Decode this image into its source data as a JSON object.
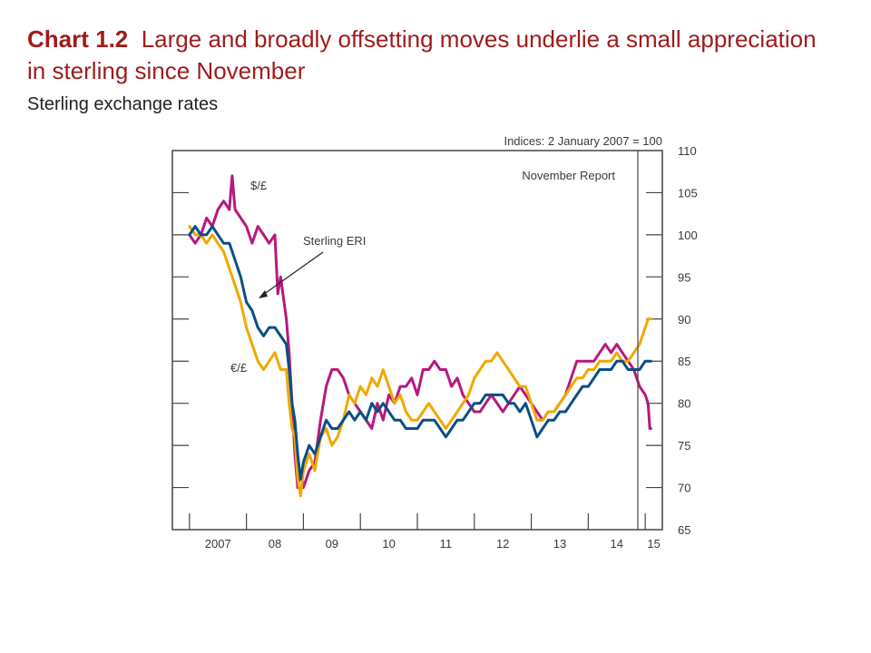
{
  "slide": {
    "chart_number": "Chart 1.2",
    "headline": "Large and broadly offsetting moves underlie a small appreciation in sterling since November",
    "subtitle": "Sterling exchange rates"
  },
  "chart_data": {
    "type": "line",
    "title": "Large and broadly offsetting moves underlie a small appreciation in sterling since November",
    "subtitle": "Sterling exchange rates",
    "units_label": "Indices: 2 January 2007 = 100",
    "xlabel": "",
    "ylabel": "",
    "x_ticks": [
      "2007",
      "08",
      "09",
      "10",
      "11",
      "12",
      "13",
      "14",
      "15"
    ],
    "xlim": [
      2006.7,
      2015.3
    ],
    "ylim": [
      65,
      110
    ],
    "y_ticks": [
      65,
      70,
      75,
      80,
      85,
      90,
      95,
      100,
      105,
      110
    ],
    "y_axis_side": "right",
    "grid": false,
    "annotations": {
      "november_report": {
        "label": "November Report",
        "x": 2014.87
      },
      "usd_label": "$/£",
      "eur_label": "€/£",
      "eri_label": "Sterling ERI"
    },
    "series": [
      {
        "name": "$/£",
        "color": "#b5197f",
        "x": [
          2007.0,
          2007.1,
          2007.2,
          2007.3,
          2007.4,
          2007.5,
          2007.6,
          2007.7,
          2007.75,
          2007.8,
          2007.9,
          2008.0,
          2008.1,
          2008.2,
          2008.3,
          2008.4,
          2008.5,
          2008.55,
          2008.6,
          2008.7,
          2008.75,
          2008.8,
          2008.85,
          2008.9,
          2008.95,
          2009.0,
          2009.1,
          2009.2,
          2009.3,
          2009.4,
          2009.5,
          2009.6,
          2009.7,
          2009.8,
          2009.9,
          2010.0,
          2010.1,
          2010.2,
          2010.3,
          2010.4,
          2010.5,
          2010.6,
          2010.7,
          2010.8,
          2010.9,
          2011.0,
          2011.1,
          2011.2,
          2011.3,
          2011.4,
          2011.5,
          2011.6,
          2011.7,
          2011.8,
          2011.9,
          2012.0,
          2012.1,
          2012.2,
          2012.3,
          2012.4,
          2012.5,
          2012.6,
          2012.7,
          2012.8,
          2012.9,
          2013.0,
          2013.1,
          2013.2,
          2013.3,
          2013.4,
          2013.5,
          2013.6,
          2013.7,
          2013.8,
          2013.9,
          2014.0,
          2014.1,
          2014.2,
          2014.3,
          2014.4,
          2014.5,
          2014.6,
          2014.7,
          2014.8,
          2014.9,
          2015.0,
          2015.05,
          2015.08,
          2015.1
        ],
        "values": [
          100,
          99,
          100,
          102,
          101,
          103,
          104,
          103,
          107,
          103,
          102,
          101,
          99,
          101,
          100,
          99,
          100,
          93,
          95,
          90,
          86,
          80,
          74,
          70,
          72,
          70,
          72,
          73,
          78,
          82,
          84,
          84,
          83,
          81,
          80,
          79,
          78,
          77,
          80,
          78,
          81,
          80,
          82,
          82,
          83,
          81,
          84,
          84,
          85,
          84,
          84,
          82,
          83,
          81,
          80,
          79,
          79,
          80,
          81,
          80,
          79,
          80,
          81,
          82,
          81,
          80,
          79,
          78,
          79,
          79,
          80,
          81,
          83,
          85,
          85,
          85,
          85,
          86,
          87,
          86,
          87,
          86,
          85,
          84,
          82,
          81,
          80,
          77,
          77
        ]
      },
      {
        "name": "€/£",
        "color": "#f0a800",
        "x": [
          2007.0,
          2007.1,
          2007.2,
          2007.3,
          2007.4,
          2007.5,
          2007.6,
          2007.7,
          2007.8,
          2007.9,
          2008.0,
          2008.1,
          2008.2,
          2008.3,
          2008.4,
          2008.5,
          2008.6,
          2008.7,
          2008.75,
          2008.8,
          2008.85,
          2008.9,
          2008.95,
          2009.0,
          2009.1,
          2009.2,
          2009.3,
          2009.4,
          2009.5,
          2009.6,
          2009.7,
          2009.8,
          2009.9,
          2010.0,
          2010.1,
          2010.2,
          2010.3,
          2010.4,
          2010.5,
          2010.6,
          2010.7,
          2010.8,
          2010.9,
          2011.0,
          2011.1,
          2011.2,
          2011.3,
          2011.4,
          2011.5,
          2011.6,
          2011.7,
          2011.8,
          2011.9,
          2012.0,
          2012.1,
          2012.2,
          2012.3,
          2012.4,
          2012.5,
          2012.6,
          2012.7,
          2012.8,
          2012.9,
          2013.0,
          2013.1,
          2013.2,
          2013.3,
          2013.4,
          2013.5,
          2013.6,
          2013.7,
          2013.8,
          2013.9,
          2014.0,
          2014.1,
          2014.2,
          2014.3,
          2014.4,
          2014.5,
          2014.6,
          2014.7,
          2014.8,
          2014.9,
          2015.0,
          2015.05,
          2015.1
        ],
        "values": [
          101,
          100,
          100,
          99,
          100,
          99,
          98,
          96,
          94,
          92,
          89,
          87,
          85,
          84,
          85,
          86,
          84,
          84,
          80,
          77,
          76,
          71,
          69,
          72,
          74,
          72,
          76,
          77,
          75,
          76,
          78,
          81,
          80,
          82,
          81,
          83,
          82,
          84,
          82,
          80,
          81,
          79,
          78,
          78,
          79,
          80,
          79,
          78,
          77,
          78,
          79,
          80,
          81,
          83,
          84,
          85,
          85,
          86,
          85,
          84,
          83,
          82,
          82,
          80,
          78,
          78,
          79,
          79,
          80,
          81,
          82,
          83,
          83,
          84,
          84,
          85,
          85,
          85,
          86,
          85,
          85,
          86,
          87,
          89,
          90,
          90
        ]
      },
      {
        "name": "Sterling ERI",
        "color": "#0a4f82",
        "x": [
          2007.0,
          2007.1,
          2007.2,
          2007.3,
          2007.4,
          2007.5,
          2007.6,
          2007.7,
          2007.8,
          2007.9,
          2008.0,
          2008.1,
          2008.2,
          2008.3,
          2008.4,
          2008.5,
          2008.6,
          2008.7,
          2008.75,
          2008.8,
          2008.85,
          2008.9,
          2008.95,
          2009.0,
          2009.1,
          2009.2,
          2009.3,
          2009.4,
          2009.5,
          2009.6,
          2009.7,
          2009.8,
          2009.9,
          2010.0,
          2010.1,
          2010.2,
          2010.3,
          2010.4,
          2010.5,
          2010.6,
          2010.7,
          2010.8,
          2010.9,
          2011.0,
          2011.1,
          2011.2,
          2011.3,
          2011.4,
          2011.5,
          2011.6,
          2011.7,
          2011.8,
          2011.9,
          2012.0,
          2012.1,
          2012.2,
          2012.3,
          2012.4,
          2012.5,
          2012.6,
          2012.7,
          2012.8,
          2012.9,
          2013.0,
          2013.1,
          2013.2,
          2013.3,
          2013.4,
          2013.5,
          2013.6,
          2013.7,
          2013.8,
          2013.9,
          2014.0,
          2014.1,
          2014.2,
          2014.3,
          2014.4,
          2014.5,
          2014.6,
          2014.7,
          2014.8,
          2014.9,
          2015.0,
          2015.05,
          2015.1
        ],
        "values": [
          100,
          101,
          100,
          100,
          101,
          100,
          99,
          99,
          97,
          95,
          92,
          91,
          89,
          88,
          89,
          89,
          88,
          87,
          84,
          80,
          78,
          74,
          71,
          73,
          75,
          74,
          76,
          78,
          77,
          77,
          78,
          79,
          78,
          79,
          78,
          80,
          79,
          80,
          79,
          78,
          78,
          77,
          77,
          77,
          78,
          78,
          78,
          77,
          76,
          77,
          78,
          78,
          79,
          80,
          80,
          81,
          81,
          81,
          81,
          80,
          80,
          79,
          80,
          78,
          76,
          77,
          78,
          78,
          79,
          79,
          80,
          81,
          82,
          82,
          83,
          84,
          84,
          84,
          85,
          85,
          84,
          84,
          84,
          85,
          85,
          85
        ]
      }
    ]
  }
}
